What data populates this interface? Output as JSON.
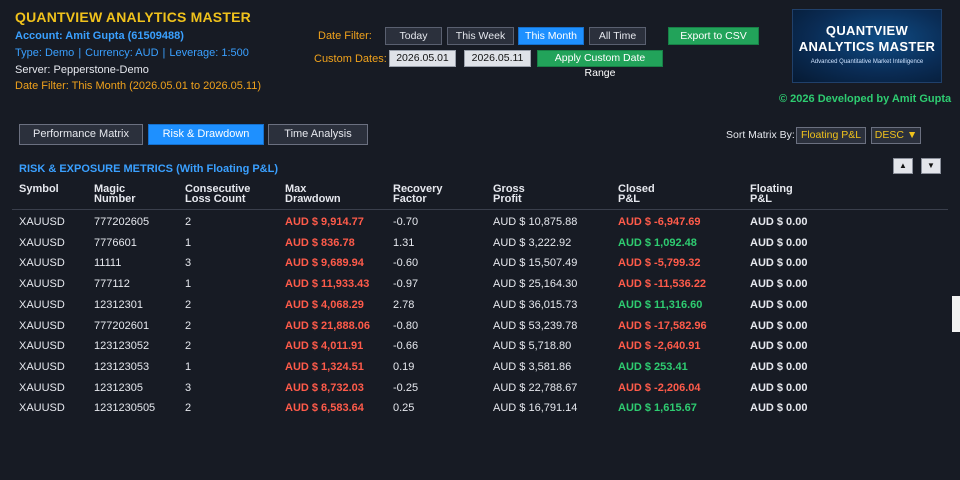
{
  "app": {
    "title": "QUANTVIEW ANALYTICS MASTER",
    "account": "Account: Amit Gupta (61509488)",
    "type": "Type: Demo",
    "currency": "Currency: AUD",
    "leverage": "Leverage: 1:500",
    "sep": "|",
    "server": "Server: Pepperstone-Demo",
    "filter_info": "Date Filter: This Month (2026.05.01 to 2026.05.11)",
    "developed_by": "© 2026 Developed by Amit Gupta"
  },
  "logo": {
    "line1": "QUANTVIEW",
    "line2": "ANALYTICS MASTER",
    "tagline": "Advanced Quantitative Market Intelligence"
  },
  "date_filter": {
    "label": "Date Filter:",
    "buttons": [
      "Today",
      "This Week",
      "This Month",
      "All Time"
    ],
    "active": "This Month",
    "export_label": "Export to CSV"
  },
  "custom_dates": {
    "label": "Custom Dates:",
    "from": "2026.05.01",
    "to": "2026.05.11",
    "apply_label": "Apply Custom Date Range"
  },
  "tabs": [
    "Performance Matrix",
    "Risk & Drawdown",
    "Time Analysis"
  ],
  "active_tab": "Risk & Drawdown",
  "sort": {
    "label": "Sort Matrix By:",
    "field": "Floating P&L",
    "order": "DESC ▼"
  },
  "section": {
    "title": "RISK & EXPOSURE METRICS (With Floating P&L)",
    "up_icon": "▲",
    "down_icon": "▼"
  },
  "table": {
    "headers": [
      [
        "Symbol",
        ""
      ],
      [
        "Magic",
        "Number"
      ],
      [
        "Consecutive",
        "Loss Count"
      ],
      [
        "Max",
        "Drawdown"
      ],
      [
        "Recovery",
        "Factor"
      ],
      [
        "Gross",
        "Profit"
      ],
      [
        "Closed",
        "P&L"
      ],
      [
        "Floating",
        "P&L"
      ]
    ],
    "rows": [
      {
        "symbol": "XAUUSD",
        "magic": "777202605",
        "loss_count": "2",
        "max_dd": "AUD $ 9,914.77",
        "recovery": "-0.70",
        "gross": "AUD $ 10,875.88",
        "closed": "AUD $ -6,947.69",
        "floating": "AUD $ 0.00"
      },
      {
        "symbol": "XAUUSD",
        "magic": "7776601",
        "loss_count": "1",
        "max_dd": "AUD $ 836.78",
        "recovery": "1.31",
        "gross": "AUD $ 3,222.92",
        "closed": "AUD $ 1,092.48",
        "floating": "AUD $ 0.00"
      },
      {
        "symbol": "XAUUSD",
        "magic": "11111",
        "loss_count": "3",
        "max_dd": "AUD $ 9,689.94",
        "recovery": "-0.60",
        "gross": "AUD $ 15,507.49",
        "closed": "AUD $ -5,799.32",
        "floating": "AUD $ 0.00"
      },
      {
        "symbol": "XAUUSD",
        "magic": "777112",
        "loss_count": "1",
        "max_dd": "AUD $ 11,933.43",
        "recovery": "-0.97",
        "gross": "AUD $ 25,164.30",
        "closed": "AUD $ -11,536.22",
        "floating": "AUD $ 0.00"
      },
      {
        "symbol": "XAUUSD",
        "magic": "12312301",
        "loss_count": "2",
        "max_dd": "AUD $ 4,068.29",
        "recovery": "2.78",
        "gross": "AUD $ 36,015.73",
        "closed": "AUD $ 11,316.60",
        "floating": "AUD $ 0.00"
      },
      {
        "symbol": "XAUUSD",
        "magic": "777202601",
        "loss_count": "2",
        "max_dd": "AUD $ 21,888.06",
        "recovery": "-0.80",
        "gross": "AUD $ 53,239.78",
        "closed": "AUD $ -17,582.96",
        "floating": "AUD $ 0.00"
      },
      {
        "symbol": "XAUUSD",
        "magic": "123123052",
        "loss_count": "2",
        "max_dd": "AUD $ 4,011.91",
        "recovery": "-0.66",
        "gross": "AUD $ 5,718.80",
        "closed": "AUD $ -2,640.91",
        "floating": "AUD $ 0.00"
      },
      {
        "symbol": "XAUUSD",
        "magic": "123123053",
        "loss_count": "1",
        "max_dd": "AUD $ 1,324.51",
        "recovery": "0.19",
        "gross": "AUD $ 3,581.86",
        "closed": "AUD $ 253.41",
        "floating": "AUD $ 0.00"
      },
      {
        "symbol": "XAUUSD",
        "magic": "12312305",
        "loss_count": "3",
        "max_dd": "AUD $ 8,732.03",
        "recovery": "-0.25",
        "gross": "AUD $ 22,788.67",
        "closed": "AUD $ -2,206.04",
        "floating": "AUD $ 0.00"
      },
      {
        "symbol": "XAUUSD",
        "magic": "1231230505",
        "loss_count": "2",
        "max_dd": "AUD $ 6,583.64",
        "recovery": "0.25",
        "gross": "AUD $ 16,791.14",
        "closed": "AUD $ 1,615.67",
        "floating": "AUD $ 0.00"
      }
    ]
  },
  "colors": {
    "background": "#171b24",
    "title": "#f0c21c",
    "accent_blue": "#3aa0ff",
    "positive": "#2ecc71",
    "negative": "#ff5b4a",
    "orange": "#f0a21c"
  }
}
